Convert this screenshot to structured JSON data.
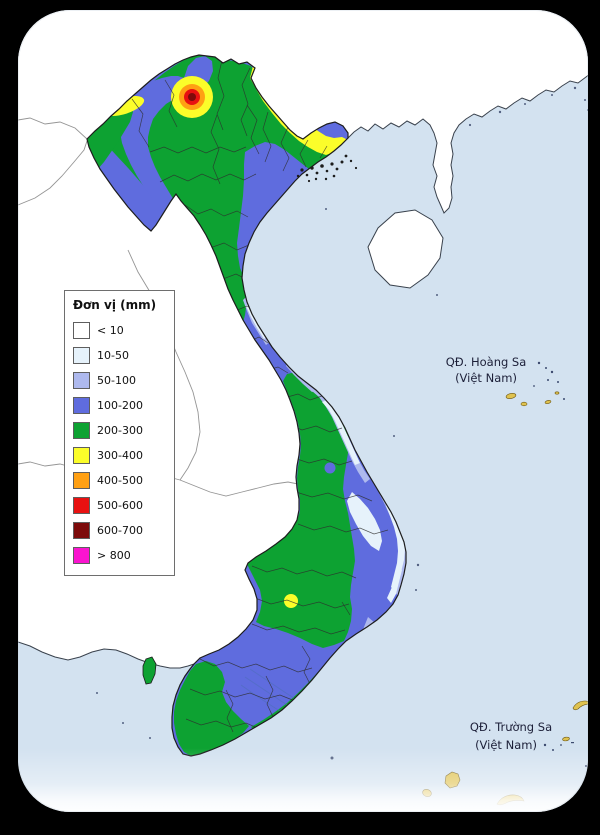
{
  "map": {
    "legend": {
      "title": "Đơn vị (mm)",
      "entries": [
        {
          "label": "< 10",
          "color": "#ffffff"
        },
        {
          "label": "10-50",
          "color": "#e6f2fb"
        },
        {
          "label": "50-100",
          "color": "#aeb9ee"
        },
        {
          "label": "100-200",
          "color": "#5f6cde"
        },
        {
          "label": "200-300",
          "color": "#0da232"
        },
        {
          "label": "300-400",
          "color": "#fbfd2a"
        },
        {
          "label": "400-500",
          "color": "#ffa013"
        },
        {
          "label": "500-600",
          "color": "#e81111"
        },
        {
          "label": "600-700",
          "color": "#7d0b0b"
        },
        {
          "label": "> 800",
          "color": "#fa14cf"
        }
      ]
    },
    "labels": {
      "hoang_sa_line1": "QĐ. Hoàng Sa",
      "hoang_sa_line2": "(Việt Nam)",
      "truong_sa_line1": "QĐ. Trường Sa",
      "truong_sa_line2": "(Việt Nam)"
    },
    "colors": {
      "frame": "#000000",
      "sea": "#d3e2f0",
      "no_data_land": "#ffffff",
      "r_lt10": "#ffffff",
      "r_10_50": "#e6f2fb",
      "r_50_100": "#aeb9ee",
      "r_100_200": "#5f6cde",
      "r_200_300": "#0da232",
      "r_300_400": "#fbfd2a",
      "r_400_500": "#ffa013",
      "r_500_600": "#e81111",
      "r_600_700": "#7d0b0b",
      "r_gt800": "#fa14cf",
      "border_vietnam": "#1d1d1d",
      "border_province": "#2e2e2e",
      "border_country": "#8a8a8a",
      "coastline": "#39414c",
      "river": "#4d6fb8",
      "island_sand": "#dfc24f",
      "island_outline": "#6b5510",
      "island_speck": "#3c4a6e",
      "label_text": "#1c1f38",
      "map_edge": "#c8d4e0"
    }
  }
}
